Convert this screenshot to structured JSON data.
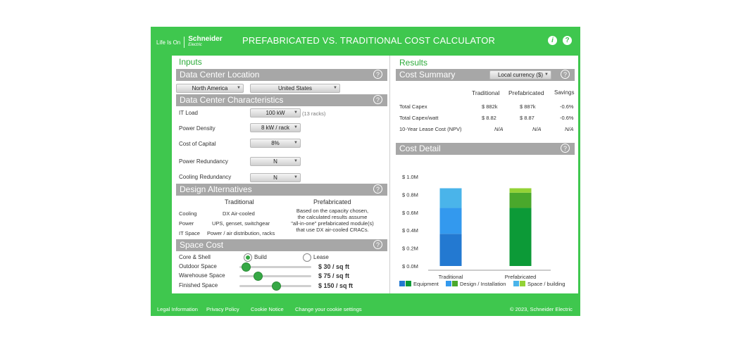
{
  "header": {
    "brand_tagline": "Life Is On",
    "brand_name": "Schneider",
    "brand_sub": "Electric",
    "title": "PREFABRICATED VS. TRADITIONAL COST CALCULATOR",
    "info_icon": "info-icon",
    "help_icon": "help-icon"
  },
  "inputs": {
    "heading": "Inputs",
    "location": {
      "title": "Data Center Location",
      "region": "North America",
      "country": "United States"
    },
    "characteristics": {
      "title": "Data Center Characteristics",
      "it_load_label": "IT Load",
      "it_load_value": "100 kW",
      "racks_note": "(13 racks)",
      "power_density_label": "Power Density",
      "power_density_value": "8 kW / rack",
      "cost_of_capital_label": "Cost of Capital",
      "cost_of_capital_value": "8%",
      "power_redundancy_label": "Power Redundancy",
      "power_redundancy_value": "N",
      "cooling_redundancy_label": "Cooling Redundancy",
      "cooling_redundancy_value": "N"
    },
    "design": {
      "title": "Design Alternatives",
      "traditional_header": "Traditional",
      "prefab_header": "Prefabricated",
      "cooling_label": "Cooling",
      "cooling_value": "DX Air-cooled",
      "power_label": "Power",
      "power_value": "UPS, genset, switchgear",
      "itspace_label": "IT Space",
      "itspace_value": "Power / air distribution, racks",
      "prefab_line1": "Based on the capacity chosen,",
      "prefab_line2": "the calculated results assume",
      "prefab_line3": "\"all-in-one\" prefabricated module(s)",
      "prefab_line4": "that use DX air-cooled CRACs."
    },
    "space": {
      "title": "Space Cost",
      "core_shell_label": "Core & Shell",
      "build_label": "Build",
      "lease_label": "Lease",
      "selected": "Build",
      "outdoor_label": "Outdoor Space",
      "outdoor_value": "$ 30  / sq ft",
      "outdoor_level": 0.03,
      "warehouse_label": "Warehouse Space",
      "warehouse_value": "$ 75  / sq ft",
      "warehouse_level": 0.2,
      "finished_label": "Finished Space",
      "finished_value": "$ 150  / sq ft",
      "finished_level": 0.48
    }
  },
  "results": {
    "heading": "Results",
    "summary": {
      "title": "Cost Summary",
      "currency": "Local currency ($)",
      "col_traditional": "Traditional",
      "col_prefab": "Prefabricated",
      "col_savings": "Savings",
      "rows": [
        {
          "label": "Total Capex",
          "traditional": "$ 882k",
          "prefab": "$ 887k",
          "savings": "-0.6%"
        },
        {
          "label": "Total Capex/watt",
          "traditional": "$ 8.82",
          "prefab": "$ 8.87",
          "savings": "-0.6%"
        },
        {
          "label": "10-Year Lease Cost (NPV)",
          "traditional": "N/A",
          "prefab": "N/A",
          "savings": "N/A"
        }
      ]
    },
    "detail": {
      "title": "Cost Detail",
      "legend_equipment": "Equipment",
      "legend_design": "Design / Installation",
      "legend_space": "Space / building"
    }
  },
  "chart_data": {
    "type": "bar",
    "stacked": true,
    "categories": [
      "Traditional",
      "Prefabricated"
    ],
    "series": [
      {
        "name": "Equipment",
        "values": [
          0.36,
          0.65
        ],
        "colors": [
          "#2379d1",
          "#0c9a37"
        ]
      },
      {
        "name": "Design / Installation",
        "values": [
          0.29,
          0.17
        ],
        "colors": [
          "#3399ee",
          "#4aa82c"
        ]
      },
      {
        "name": "Space / building",
        "values": [
          0.22,
          0.05
        ],
        "colors": [
          "#4ab4ea",
          "#93d235"
        ]
      }
    ],
    "y_ticks": [
      "$ 0.0M",
      "$ 0.2M",
      "$ 0.4M",
      "$ 0.6M",
      "$ 0.8M",
      "$ 1.0M"
    ],
    "ylim": [
      0,
      1.0
    ]
  },
  "footer": {
    "legal": "Legal Information",
    "privacy": "Privacy Policy",
    "cookie_notice": "Cookie Notice",
    "cookie_settings": "Change your cookie settings",
    "copyright": "© 2023, Schneider Electric"
  },
  "colors": {
    "brand_green": "#3fc74e",
    "section_gray": "#a7a7a7",
    "heading_green": "#2cab3a"
  }
}
